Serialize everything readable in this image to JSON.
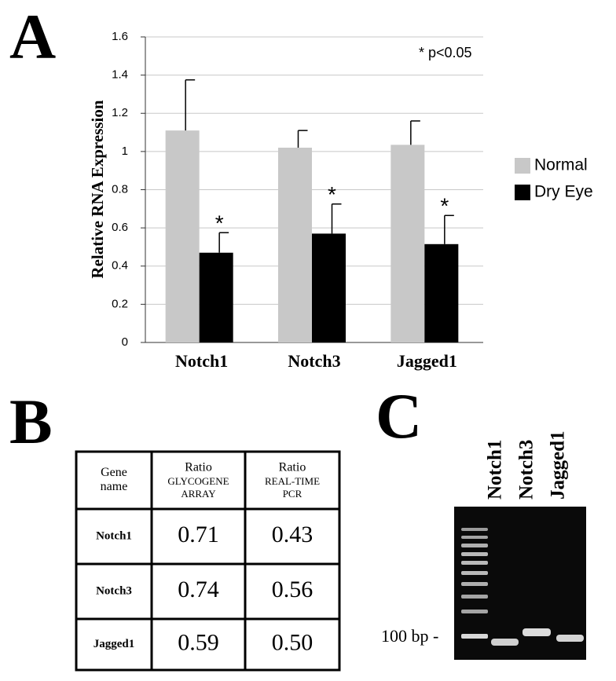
{
  "panel_labels": [
    "A",
    "B",
    "C"
  ],
  "chart_data": {
    "type": "bar",
    "y_label": "Relative RNA Expression",
    "categories": [
      "Notch1",
      "Notch3",
      "Jagged1"
    ],
    "series": [
      {
        "name": "Normal",
        "color": "#c8c8c8",
        "values": [
          1.11,
          1.02,
          1.035
        ],
        "errors": [
          0.265,
          0.09,
          0.125
        ]
      },
      {
        "name": "Dry Eye",
        "color": "#000000",
        "values": [
          0.47,
          0.57,
          0.515
        ],
        "errors": [
          0.105,
          0.155,
          0.15
        ],
        "markers": [
          "*",
          "*",
          "*"
        ]
      }
    ],
    "ylim": [
      0,
      1.6
    ],
    "yticks": [
      0,
      0.2,
      0.4,
      0.6,
      0.8,
      1,
      1.2,
      1.4,
      1.6
    ],
    "grid": true,
    "legend": "right",
    "annotation": "* p<0.05"
  },
  "table": {
    "header": [
      {
        "title": "Gene name"
      },
      {
        "title": "Ratio",
        "subtitle": "GLYCOGENE ARRAY"
      },
      {
        "title": "Ratio",
        "subtitle": "REAL-TIME PCR"
      }
    ],
    "rows": [
      [
        "Notch1",
        "0.71",
        "0.43"
      ],
      [
        "Notch3",
        "0.74",
        "0.56"
      ],
      [
        "Jagged1",
        "0.59",
        "0.50"
      ]
    ]
  },
  "gel": {
    "lanes": [
      "Notch1",
      "Notch3",
      "Jagged1"
    ],
    "marker_label": "100 bp -"
  }
}
